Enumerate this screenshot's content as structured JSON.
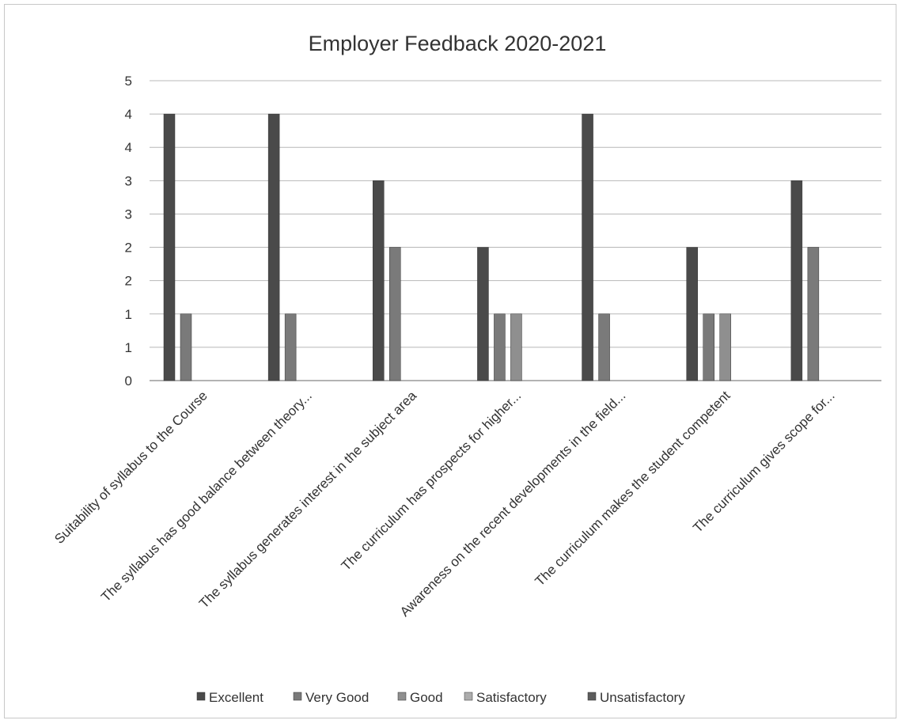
{
  "chart_data": {
    "type": "bar",
    "title": "Employer Feedback 2020-2021",
    "xlabel": "",
    "ylabel": "",
    "ylim": [
      0,
      4.5
    ],
    "y_tick_values": [
      0,
      0.5,
      1,
      1.5,
      2,
      2.5,
      3,
      3.5,
      4,
      4.5
    ],
    "y_tick_labels": [
      "0",
      "1",
      "1",
      "2",
      "2",
      "3",
      "3",
      "4",
      "4",
      "5"
    ],
    "grid": true,
    "legend_position": "bottom",
    "categories": [
      "Suitability of syllabus to the Course",
      "The  syllabus  has good  balance  between  theory...",
      "The syllabus generates interest in the subject area",
      "The  curriculum  has  prospects  for  higher...",
      "Awareness on the recent developments in the field...",
      "The curriculum makes the student competent",
      "The  curriculum  gives  scope  for..."
    ],
    "series": [
      {
        "name": "Excellent",
        "color": "#4a4a4a",
        "values": [
          4,
          4,
          3,
          2,
          4,
          2,
          3
        ]
      },
      {
        "name": "Very Good",
        "color": "#7a7a7a",
        "values": [
          1,
          1,
          2,
          1,
          1,
          1,
          2
        ]
      },
      {
        "name": "Good",
        "color": "#8f8f8f",
        "values": [
          0,
          0,
          0,
          1,
          0,
          1,
          0
        ]
      },
      {
        "name": "Satisfactory",
        "color": "#acacac",
        "values": [
          0,
          0,
          0,
          0,
          0,
          0,
          0
        ]
      },
      {
        "name": "Unsatisfactory",
        "color": "#5c5c5c",
        "values": [
          0,
          0,
          0,
          0,
          0,
          0,
          0
        ]
      }
    ]
  }
}
